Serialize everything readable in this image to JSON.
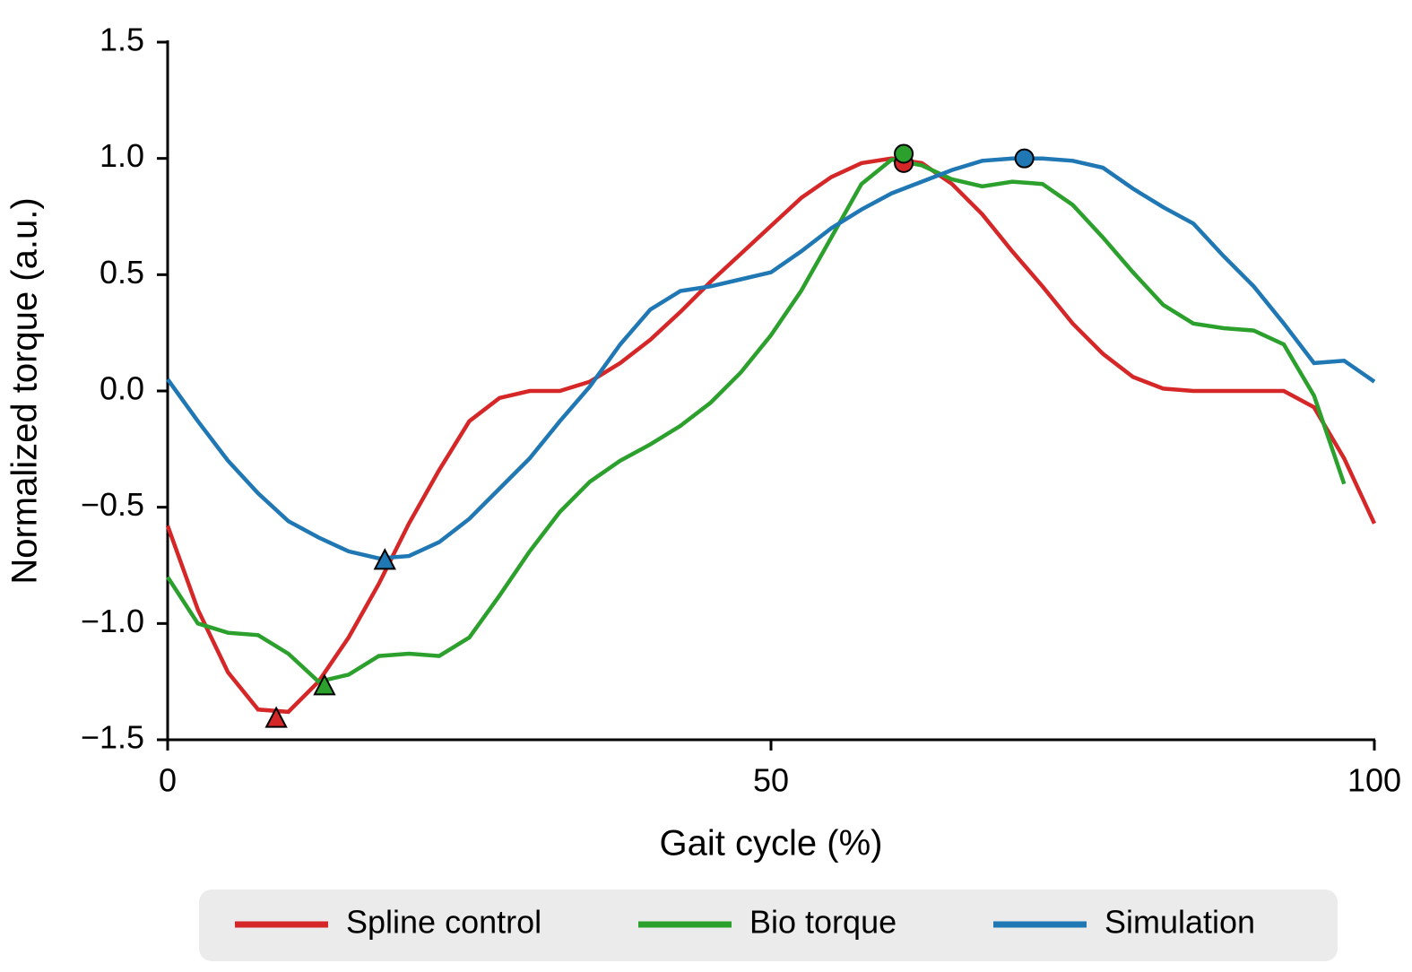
{
  "chart_data": {
    "type": "line",
    "xlabel": "Gait cycle (%)",
    "ylabel": "Normalized torque (a.u.)",
    "x": [
      0,
      2.5,
      5,
      7.5,
      10,
      12.5,
      15,
      17.5,
      20,
      22.5,
      25,
      27.5,
      30,
      32.5,
      35,
      37.5,
      40,
      42.5,
      45,
      47.5,
      50,
      52.5,
      55,
      57.5,
      60,
      62.5,
      65,
      67.5,
      70,
      72.5,
      75,
      77.5,
      80,
      82.5,
      85,
      87.5,
      90,
      92.5,
      95,
      97.5,
      100
    ],
    "series": [
      {
        "name": "Spline control",
        "color": "#d62728",
        "values": [
          -0.58,
          -0.94,
          -1.21,
          -1.37,
          -1.38,
          -1.25,
          -1.06,
          -0.83,
          -0.57,
          -0.34,
          -0.13,
          -0.03,
          0.0,
          0.0,
          0.04,
          0.12,
          0.22,
          0.34,
          0.47,
          0.59,
          0.71,
          0.83,
          0.92,
          0.98,
          1.0,
          0.98,
          0.89,
          0.76,
          0.6,
          0.45,
          0.29,
          0.16,
          0.06,
          0.01,
          0.0,
          0.0,
          0.0,
          0.0,
          -0.07,
          -0.29,
          -0.57
        ],
        "markers": [
          {
            "x": 9,
            "y": -1.41,
            "shape": "triangle"
          },
          {
            "x": 61,
            "y": 0.98,
            "shape": "circle"
          }
        ]
      },
      {
        "name": "Bio torque",
        "color": "#2ca02c",
        "values": [
          -0.8,
          -1.0,
          -1.04,
          -1.05,
          -1.13,
          -1.25,
          -1.22,
          -1.14,
          -1.13,
          -1.14,
          -1.06,
          -0.88,
          -0.69,
          -0.52,
          -0.39,
          -0.3,
          -0.23,
          -0.15,
          -0.05,
          0.08,
          0.24,
          0.43,
          0.66,
          0.89,
          0.995,
          0.97,
          0.91,
          0.88,
          0.9,
          0.89,
          0.8,
          0.66,
          0.51,
          0.37,
          0.29,
          0.27,
          0.26,
          0.2,
          -0.02,
          -0.4,
          null
        ],
        "markers": [
          {
            "x": 13,
            "y": -1.27,
            "shape": "triangle"
          },
          {
            "x": 61,
            "y": 1.02,
            "shape": "circle"
          }
        ]
      },
      {
        "name": "Simulation",
        "color": "#1f77b4",
        "values": [
          0.05,
          -0.13,
          -0.3,
          -0.44,
          -0.56,
          -0.63,
          -0.69,
          -0.72,
          -0.71,
          -0.65,
          -0.55,
          -0.42,
          -0.29,
          -0.13,
          0.02,
          0.2,
          0.35,
          0.43,
          0.45,
          0.48,
          0.51,
          0.6,
          0.7,
          0.78,
          0.85,
          0.9,
          0.95,
          0.99,
          1.0,
          1.0,
          0.99,
          0.96,
          0.87,
          0.79,
          0.72,
          0.58,
          0.45,
          0.29,
          0.12,
          0.13,
          0.04
        ],
        "markers": [
          {
            "x": 18,
            "y": -0.73,
            "shape": "triangle"
          },
          {
            "x": 71,
            "y": 1.0,
            "shape": "circle"
          }
        ]
      }
    ],
    "xlim": [
      0,
      100
    ],
    "xticks": [
      0,
      50,
      100
    ],
    "ylim": [
      -1.5,
      1.5
    ],
    "yticks": [
      {
        "value": -1.5,
        "label": "−1.5"
      },
      {
        "value": -1.0,
        "label": "−1.0"
      },
      {
        "value": -0.5,
        "label": "−0.5"
      },
      {
        "value": 0,
        "label": "0.0"
      },
      {
        "value": 0.5,
        "label": "0.5"
      },
      {
        "value": 1.0,
        "label": "1.0"
      },
      {
        "value": 1.5,
        "label": "1.5"
      }
    ],
    "grid": false,
    "legend": "bottom"
  }
}
